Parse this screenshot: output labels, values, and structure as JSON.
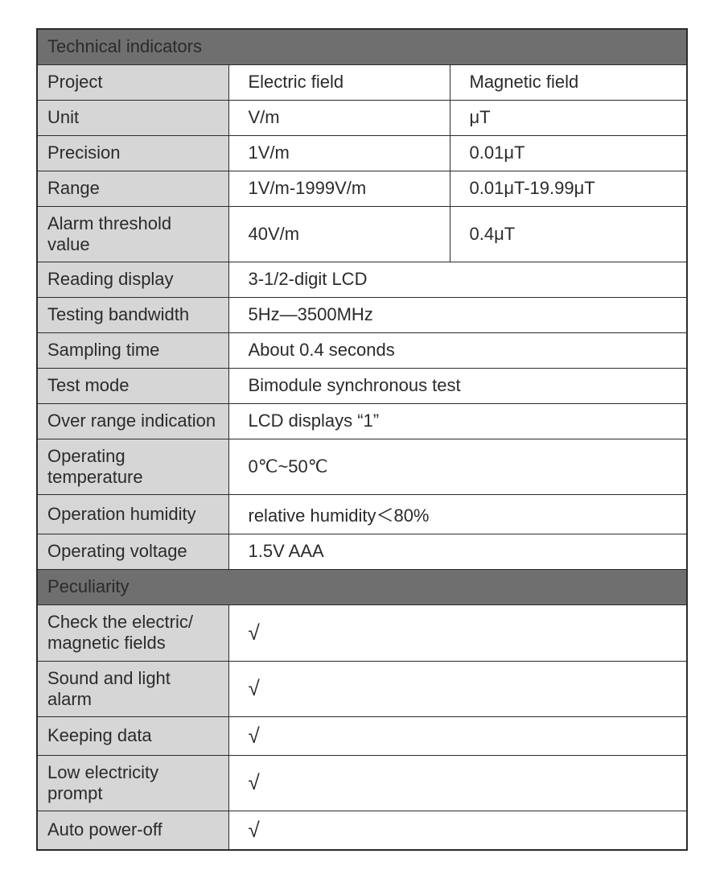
{
  "colors": {
    "header_bg": "#6f6f6f",
    "header_text": "#ffffff",
    "label_bg": "#d6d6d6",
    "value_bg": "#ffffff",
    "border": "#2b2b2b",
    "text": "#2b2b2b"
  },
  "sections": {
    "technical": {
      "title": "Technical indicators",
      "rows": {
        "project": {
          "label": "Project",
          "col2": "Electric field",
          "col3": "Magnetic field"
        },
        "unit": {
          "label": "Unit",
          "col2": "V/m",
          "col3": "μT"
        },
        "precision": {
          "label": "Precision",
          "col2": "1V/m",
          "col3": "0.01μT"
        },
        "range": {
          "label": "Range",
          "col2": "1V/m-1999V/m",
          "col3": "0.01μT-19.99μT"
        },
        "alarm_threshold": {
          "label": "Alarm threshold value",
          "col2": "40V/m",
          "col3": "0.4μT"
        },
        "reading_display": {
          "label": "Reading display",
          "value": "3-1/2-digit LCD"
        },
        "testing_bandwidth": {
          "label": "Testing bandwidth",
          "value": "5Hz—3500MHz"
        },
        "sampling_time": {
          "label": "Sampling time",
          "value": "About 0.4 seconds"
        },
        "test_mode": {
          "label": "Test mode",
          "value": "Bimodule synchronous test"
        },
        "over_range": {
          "label": "Over range indication",
          "value": "LCD displays “1”"
        },
        "operating_temp": {
          "label": "Operating temperature",
          "value": "0℃~50℃"
        },
        "operation_humidity": {
          "label": "Operation humidity",
          "value": "relative humidity＜80%"
        },
        "operating_voltage": {
          "label": "Operating voltage",
          "value": "1.5V AAA"
        }
      }
    },
    "peculiarity": {
      "title": "Peculiarity",
      "checkmark": "√",
      "rows": {
        "check_fields": {
          "label": "Check the electric/\nmagnetic fields"
        },
        "sound_light": {
          "label": "Sound and light alarm"
        },
        "keeping_data": {
          "label": "Keeping data"
        },
        "low_electricity": {
          "label": "Low electricity prompt"
        },
        "auto_poweroff": {
          "label": "Auto power-off"
        }
      }
    }
  }
}
